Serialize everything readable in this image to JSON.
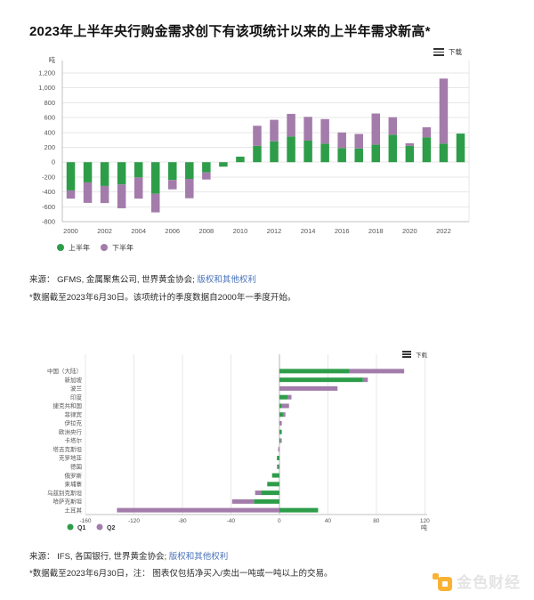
{
  "title": "2023年上半年央行购金需求创下有该项统计以来的上半年需求新高*",
  "colors": {
    "h1_green": "#2e9d49",
    "h2_purple": "#a37cab",
    "link_blue": "#4a72b8",
    "logo_orange": "#f9b233",
    "grid": "#e7e7e7",
    "axis": "#c2c2c2",
    "tick_text": "#555555"
  },
  "chart1": {
    "download_label": "下载",
    "unit": "吨",
    "legend": [
      "上半年",
      "下半年"
    ],
    "source_prefix": "来源：  GFMS, 金属聚焦公司, 世界黄金协会; ",
    "source_link": "版权和其他权利",
    "note": "*数据截至2023年6月30日。该项统计的季度数据自2000年一季度开始。"
  },
  "chart2": {
    "download_label": "下载",
    "unit": "吨",
    "legend": [
      "Q1",
      "Q2"
    ],
    "source_prefix": "来源：  IFS, 各国银行, 世界黄金协会; ",
    "source_link": "版权和其他权利",
    "note": "*数据截至2023年6月30日，注： 图表仅包括净买入/卖出一吨或一吨以上的交易。"
  },
  "logo": {
    "text": "金色财经"
  },
  "chart_data": [
    {
      "type": "bar",
      "stacked": true,
      "orientation": "vertical",
      "title": "央行半年度净购金量（吨）",
      "unit": "吨",
      "categories": [
        "2000",
        "2001",
        "2002",
        "2003",
        "2004",
        "2005",
        "2006",
        "2007",
        "2008",
        "2009",
        "2010",
        "2011",
        "2012",
        "2013",
        "2014",
        "2015",
        "2016",
        "2017",
        "2018",
        "2019",
        "2020",
        "2021",
        "2022",
        "2023"
      ],
      "series": [
        {
          "name": "上半年",
          "color": "#2e9d49",
          "values": [
            -380,
            -272,
            -320,
            -300,
            -205,
            -425,
            -240,
            -225,
            -138,
            -60,
            75,
            220,
            280,
            345,
            290,
            250,
            190,
            185,
            235,
            370,
            220,
            335,
            250,
            385
          ]
        },
        {
          "name": "下半年",
          "color": "#a37cab",
          "values": [
            -110,
            -275,
            -230,
            -320,
            -285,
            -250,
            -125,
            -260,
            -95,
            0,
            0,
            270,
            290,
            305,
            320,
            330,
            210,
            195,
            420,
            235,
            35,
            135,
            875,
            0
          ]
        }
      ],
      "ylim": [
        -800,
        1200
      ],
      "ytick_step": 200,
      "xlabel_every": 2,
      "grid": true,
      "legend_position": "bottom-left"
    },
    {
      "type": "bar",
      "stacked": true,
      "orientation": "horizontal",
      "title": "2023年上半年各央行净购金/售金量（吨）",
      "unit": "吨",
      "categories": [
        "中国（大陆）",
        "新加坡",
        "波兰",
        "印度",
        "捷克共和国",
        "菲律宾",
        "伊拉克",
        "欧洲央行",
        "卡塔尔",
        "塔吉克斯坦",
        "克罗地亚",
        "德国",
        "俄罗斯",
        "柬埔寨",
        "乌兹别克斯坦",
        "哈萨克斯坦",
        "土耳其"
      ],
      "series": [
        {
          "name": "Q1",
          "color": "#2e9d49",
          "values": [
            58,
            69,
            0,
            7,
            2,
            3,
            0,
            2,
            1,
            0,
            -2,
            -1,
            -6,
            -10,
            -15,
            -21,
            32
          ]
        },
        {
          "name": "Q2",
          "color": "#a37cab",
          "values": [
            45,
            4,
            48,
            3,
            6,
            2,
            2,
            0,
            1,
            -1,
            0,
            -1,
            0,
            0,
            -5,
            -18,
            -134
          ]
        }
      ],
      "xlim": [
        -160,
        122
      ],
      "xtick_step": 40,
      "grid": true,
      "legend_position": "bottom-left"
    }
  ]
}
